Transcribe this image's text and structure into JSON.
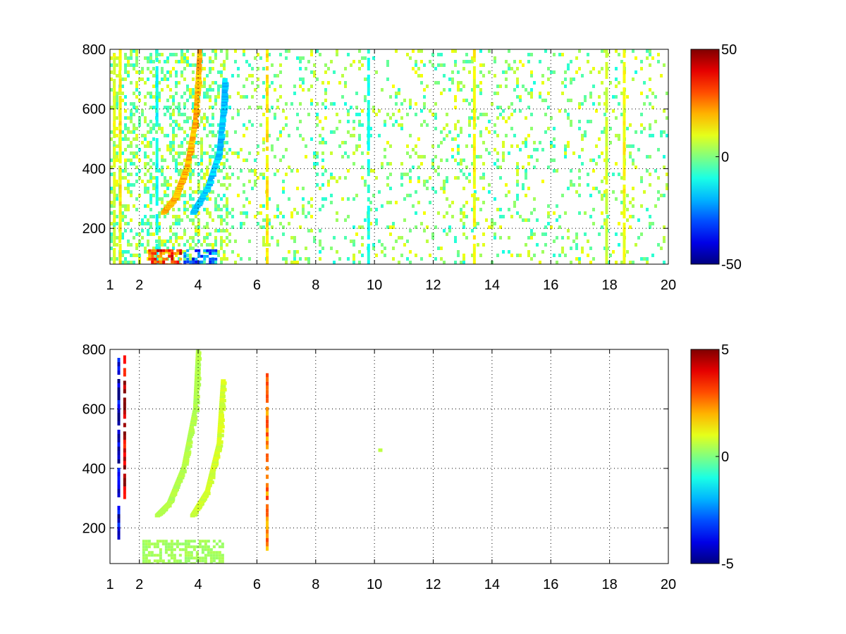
{
  "chart_data": [
    {
      "type": "heatmap",
      "title": "",
      "xlabel": "",
      "ylabel": "",
      "xlim": [
        1,
        20
      ],
      "ylim": [
        80,
        800
      ],
      "x_ticks": [
        1,
        2,
        4,
        6,
        8,
        10,
        12,
        14,
        16,
        18,
        20
      ],
      "y_ticks": [
        200,
        400,
        600,
        800
      ],
      "grid": true,
      "colormap": "jet",
      "colorbar": {
        "clim": [
          -50,
          50
        ],
        "ticks": [
          50,
          0,
          -50
        ],
        "placement": "right"
      },
      "features": [
        {
          "kind": "arc",
          "x": [
            2.8,
            3.2,
            3.6,
            3.9,
            4.05
          ],
          "y": [
            250,
            300,
            400,
            560,
            800
          ],
          "value": 20
        },
        {
          "kind": "arc",
          "x": [
            3.8,
            4.3,
            4.7,
            4.85,
            4.9
          ],
          "y": [
            250,
            330,
            450,
            600,
            700
          ],
          "value": -18
        },
        {
          "kind": "band",
          "x": 1.15,
          "ymin": 80,
          "ymax": 800,
          "value": 10
        },
        {
          "kind": "band",
          "x": 1.35,
          "ymin": 80,
          "ymax": 800,
          "value": 14
        },
        {
          "kind": "band",
          "x": 2.6,
          "ymin": 80,
          "ymax": 800,
          "value": -12
        },
        {
          "kind": "band",
          "x": 6.35,
          "ymin": 80,
          "ymax": 800,
          "value": 14
        },
        {
          "kind": "band",
          "x": 9.8,
          "ymin": 80,
          "ymax": 800,
          "value": -10
        },
        {
          "kind": "band",
          "x": 13.4,
          "ymin": 80,
          "ymax": 800,
          "value": 12
        },
        {
          "kind": "band",
          "x": 17.9,
          "ymin": 80,
          "ymax": 800,
          "value": 8
        },
        {
          "kind": "band",
          "x": 18.5,
          "ymin": 80,
          "ymax": 800,
          "value": 12
        },
        {
          "kind": "blob",
          "x": [
            2.3,
            3.4
          ],
          "y": [
            80,
            130
          ],
          "value": 45
        },
        {
          "kind": "blob",
          "x": [
            3.5,
            4.6
          ],
          "y": [
            80,
            130
          ],
          "value": -40
        }
      ],
      "noise_density": 0.14
    },
    {
      "type": "heatmap",
      "title": "",
      "xlabel": "",
      "ylabel": "",
      "xlim": [
        1,
        20
      ],
      "ylim": [
        80,
        800
      ],
      "x_ticks": [
        1,
        2,
        4,
        6,
        8,
        10,
        12,
        14,
        16,
        18,
        20
      ],
      "y_ticks": [
        200,
        400,
        600,
        800
      ],
      "grid": true,
      "colormap": "jet",
      "colorbar": {
        "clim": [
          -5,
          5
        ],
        "ticks": [
          5,
          0,
          -5
        ],
        "placement": "right"
      },
      "features": [
        {
          "kind": "arc",
          "x": [
            2.6,
            3.0,
            3.5,
            3.9,
            4.0
          ],
          "y": [
            240,
            280,
            400,
            600,
            800
          ],
          "value": 0.5
        },
        {
          "kind": "arc",
          "x": [
            3.8,
            4.3,
            4.7,
            4.85
          ],
          "y": [
            240,
            320,
            480,
            700
          ],
          "value": 0.8
        },
        {
          "kind": "band",
          "x": 1.3,
          "ymin": 170,
          "ymax": 800,
          "value": -4.5
        },
        {
          "kind": "band",
          "x": 1.5,
          "ymin": 300,
          "ymax": 780,
          "value": 4.5
        },
        {
          "kind": "band",
          "x": 6.35,
          "ymin": 130,
          "ymax": 720,
          "value": 2.5
        },
        {
          "kind": "blob",
          "x": [
            2.1,
            4.8
          ],
          "y": [
            80,
            160
          ],
          "value": 0.5
        },
        {
          "kind": "dot",
          "x": 10.2,
          "y": 460,
          "value": 0.6
        }
      ],
      "noise_density": 0.0
    }
  ]
}
